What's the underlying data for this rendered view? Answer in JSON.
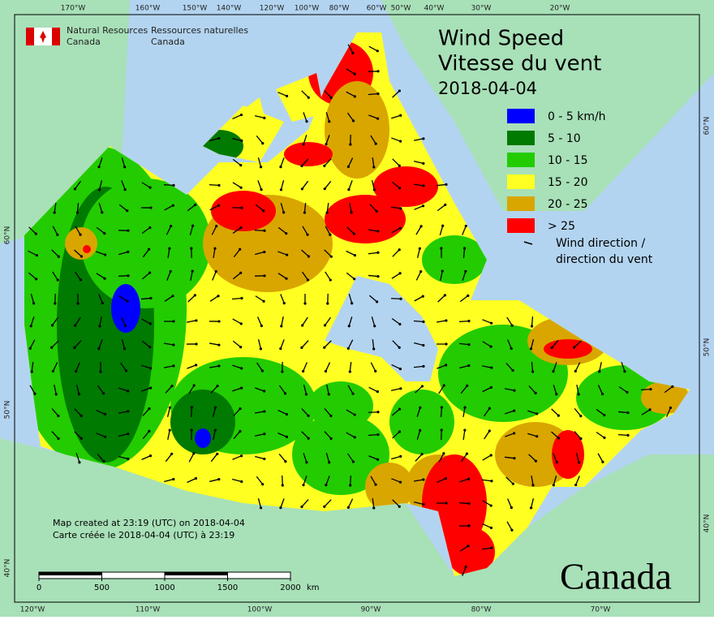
{
  "header": {
    "agency_en": [
      "Natural Resources",
      "Canada"
    ],
    "agency_fr": [
      "Ressources naturelles",
      "Canada"
    ]
  },
  "title": [
    "Wind Speed",
    "Vitesse du vent"
  ],
  "date": "2018-04-04",
  "legend": {
    "items": [
      {
        "label": "0 - 5 km/h",
        "color": "#0000ff"
      },
      {
        "label": "5 - 10",
        "color": "#007a00"
      },
      {
        "label": "10 - 15",
        "color": "#22cc00"
      },
      {
        "label": "15 - 20",
        "color": "#ffff22"
      },
      {
        "label": "20 - 25",
        "color": "#d9a600"
      },
      {
        "label": "> 25",
        "color": "#ff0000"
      }
    ],
    "arrow_label": [
      "Wind direction /",
      "direction du vent"
    ]
  },
  "graticule": {
    "top": [
      "170°W",
      "160°W",
      "150°W",
      "140°W",
      "120°W",
      "100°W",
      "80°W",
      "60°W",
      "50°W",
      "40°W",
      "30°W",
      "20°W"
    ],
    "bottom": [
      "120°W",
      "110°W",
      "100°W",
      "90°W",
      "80°W",
      "70°W"
    ],
    "left": [
      "60°N",
      "50°N",
      "40°N"
    ],
    "right": [
      "60°N",
      "50°N",
      "40°N"
    ]
  },
  "notes": [
    "Map created at 23:19 (UTC) on 2018-04-04",
    "Carte créée le 2018-04-04 (UTC) à 23:19"
  ],
  "scale": {
    "ticks": [
      0,
      500,
      1000,
      1500,
      2000
    ],
    "unit": "km"
  },
  "wordmark": "Canada"
}
